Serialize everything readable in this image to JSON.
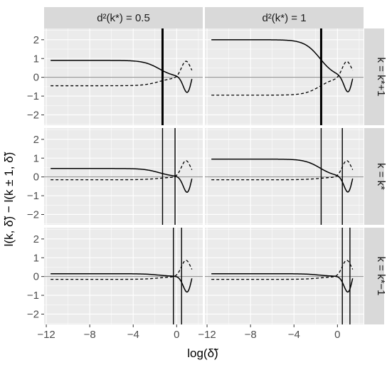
{
  "chart_data": {
    "type": "line",
    "xlabel": "log(δ̃)",
    "ylabel": "l(k, δ̃) − l(k ± 1, δ̃)",
    "xlim": [
      -12.2,
      2.4
    ],
    "ylim": [
      -2.55,
      2.6
    ],
    "x_ticks": [
      -12,
      -8,
      -4,
      0
    ],
    "x_tick_labels": [
      "−12",
      "−8",
      "−4",
      "0"
    ],
    "y_ticks": [
      -2,
      -1,
      0,
      1,
      2
    ],
    "y_tick_labels": [
      "−2",
      "−1",
      "0",
      "1",
      "2"
    ],
    "grid": true,
    "columns": [
      "d²(k*) = 0.5",
      "d²(k*) = 1"
    ],
    "rows": [
      "k = k*+1",
      "k = k*",
      "k = k*−1"
    ],
    "panels": [
      {
        "col": 0,
        "row": 0,
        "solid_level": 0.9,
        "dashed_level": -0.45,
        "vlines": [
          {
            "x": -1.3,
            "bold": true
          }
        ]
      },
      {
        "col": 1,
        "row": 0,
        "solid_level": 2.0,
        "dashed_level": -0.95,
        "vlines": [
          {
            "x": -1.5,
            "bold": true
          }
        ]
      },
      {
        "col": 0,
        "row": 1,
        "solid_level": 0.45,
        "dashed_level": -0.15,
        "vlines": [
          {
            "x": -1.3,
            "bold": false
          },
          {
            "x": -0.15,
            "bold": false
          }
        ]
      },
      {
        "col": 1,
        "row": 1,
        "solid_level": 0.95,
        "dashed_level": -0.15,
        "vlines": [
          {
            "x": -1.5,
            "bold": false
          },
          {
            "x": 0.45,
            "bold": false
          }
        ]
      },
      {
        "col": 0,
        "row": 2,
        "solid_level": 0.15,
        "dashed_level": -0.15,
        "vlines": [
          {
            "x": -0.3,
            "bold": false
          },
          {
            "x": 0.45,
            "bold": false
          }
        ]
      },
      {
        "col": 1,
        "row": 2,
        "solid_level": 0.15,
        "dashed_level": -0.15,
        "vlines": [
          {
            "x": 0.45,
            "bold": false
          },
          {
            "x": 1.15,
            "bold": false
          }
        ]
      }
    ],
    "curve_shape": {
      "x_end": 1.4,
      "solid_transition_center": -1.6,
      "solid_min": {
        "x": 1.0,
        "y": -0.9
      },
      "dashed_max": {
        "x": 0.85,
        "y": 0.9
      }
    }
  }
}
